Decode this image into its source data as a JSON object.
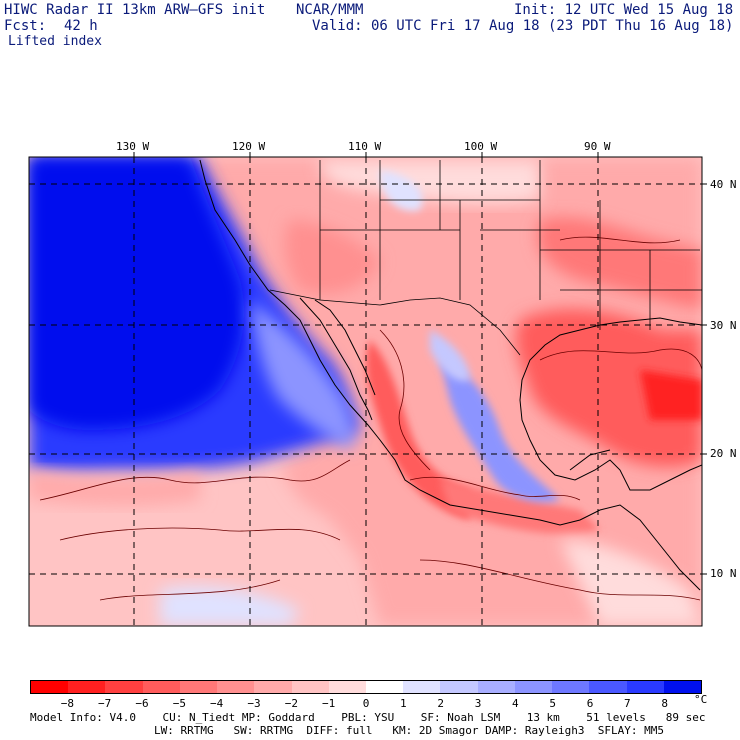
{
  "header": {
    "title": "HIWC Radar II 13km ARW–GFS init",
    "org": "NCAR/MMM",
    "init": "Init: 12 UTC Wed 15 Aug 18",
    "fcst_label": "Fcst:",
    "fcst_value": "42 h",
    "valid": "Valid: 06 UTC Fri 17 Aug 18 (23 PDT Thu 16 Aug 18)",
    "field": "Lifted index"
  },
  "longitudes": [
    "130 W",
    "120 W",
    "110 W",
    "100 W",
    "90 W"
  ],
  "latitudes": [
    "40 N",
    "30 N",
    "20 N",
    "10 N"
  ],
  "colorbar": {
    "ticks": [
      "−8",
      "−7",
      "−6",
      "−5",
      "−4",
      "−3",
      "−2",
      "−1",
      "0",
      "1",
      "2",
      "3",
      "4",
      "5",
      "6",
      "7",
      "8"
    ],
    "unit": "°C",
    "colors": [
      "#ff0000",
      "#ff2020",
      "#ff4040",
      "#ff5c5c",
      "#ff7878",
      "#ff9090",
      "#ffaaaa",
      "#ffc4c4",
      "#ffdcdc",
      "#ffffff",
      "#e0e2ff",
      "#c4c8ff",
      "#a8aeff",
      "#8c94ff",
      "#6e78ff",
      "#4a58ff",
      "#2a3aff",
      "#0010ee"
    ]
  },
  "footer": {
    "line1": "Model Info: V4.0    CU: N_Tiedt MP: Goddard    PBL: YSU    SF: Noah LSM    13 km    51 levels   89 sec",
    "line2": "LW: RRTMG   SW: RRTMG  DIFF: full   KM: 2D Smagor DAMP: Rayleigh3  SFLAY: MM5"
  }
}
